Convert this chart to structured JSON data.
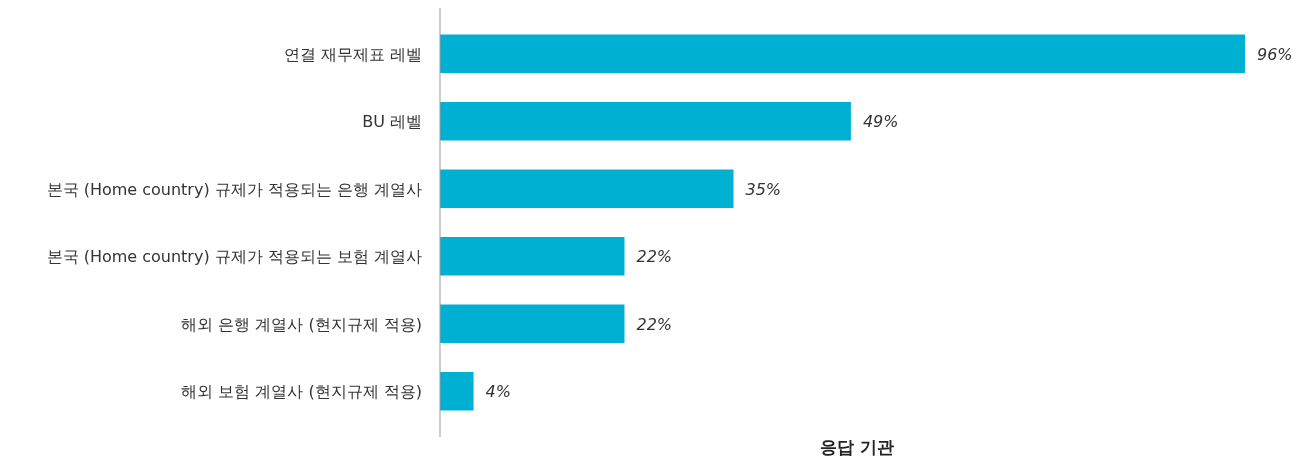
{
  "chart_data": {
    "type": "bar",
    "orientation": "horizontal",
    "xlabel": "응답 기관",
    "color": "#00b0d2",
    "categories": [
      "연결 재무제표 레벨",
      "BU 레벨",
      "본국 (Home country) 규제가 적용되는 은행 계열사",
      "본국 (Home country) 규제가 적용되는 보험 계열사",
      "해외 은행 계열사 (현지규제 적용)",
      "해외 보험 계열사 (현지규제 적용)"
    ],
    "values": [
      96,
      49,
      35,
      22,
      22,
      4
    ],
    "value_labels": [
      "96%",
      "49%",
      "35%",
      "22%",
      "22%",
      "4%"
    ]
  }
}
